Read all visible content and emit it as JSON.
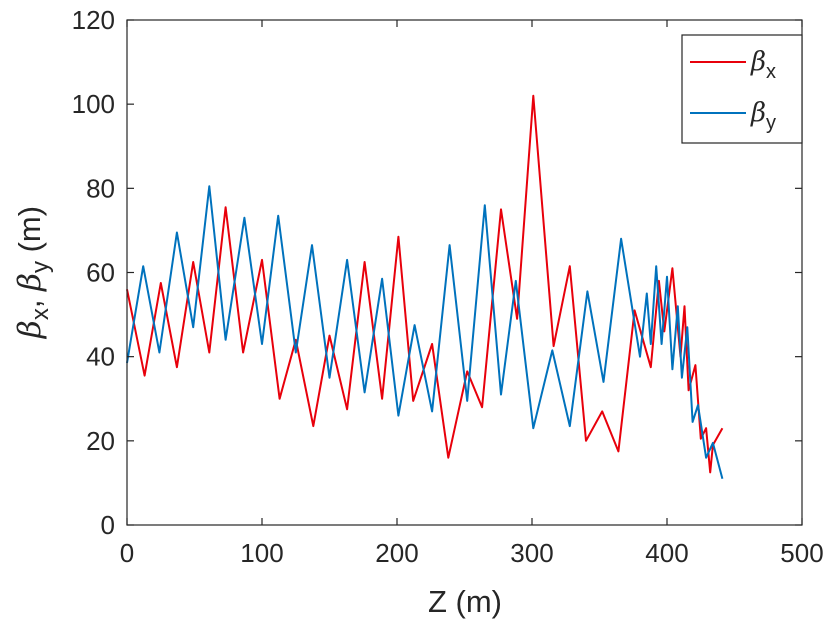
{
  "chart_data": {
    "type": "line",
    "xlabel": "Z (m)",
    "ylabel_parts": [
      "β",
      "x",
      ", ",
      "β",
      "y",
      " (m)"
    ],
    "xlim": [
      0,
      500
    ],
    "ylim": [
      0,
      120
    ],
    "xticks": [
      0,
      100,
      200,
      300,
      400,
      500
    ],
    "yticks": [
      0,
      20,
      40,
      60,
      80,
      100,
      120
    ],
    "xtick_labels": [
      "0",
      "100",
      "200",
      "300",
      "400",
      "500"
    ],
    "ytick_labels": [
      "0",
      "20",
      "40",
      "60",
      "80",
      "100",
      "120"
    ],
    "grid": false,
    "legend_position": "top-right",
    "series": [
      {
        "name": "βx",
        "legend_symbol": "β",
        "legend_sub": "x",
        "color": "#e8000b",
        "x": [
          0,
          13,
          25,
          37,
          49,
          61,
          73,
          86,
          100,
          113,
          125,
          138,
          150,
          163,
          176,
          189,
          201,
          212,
          226,
          238,
          252,
          263,
          277,
          289,
          301,
          316,
          328,
          340,
          352,
          364,
          376,
          388,
          394,
          398,
          404,
          410,
          413,
          416,
          421,
          425,
          429,
          432,
          434,
          441
        ],
        "y": [
          56,
          35.5,
          57.5,
          37.5,
          62.5,
          41,
          75.5,
          41,
          63,
          30,
          44,
          23.5,
          45,
          27.5,
          62.5,
          30,
          68.5,
          29.5,
          43,
          16,
          36.5,
          28,
          75,
          49,
          102,
          42.5,
          61.5,
          20,
          27,
          17.5,
          51,
          37.5,
          58,
          46,
          61,
          40,
          52,
          32,
          38,
          20.5,
          23,
          12.5,
          19,
          23
        ]
      },
      {
        "name": "βy",
        "legend_symbol": "β",
        "legend_sub": "y",
        "color": "#0072bd",
        "x": [
          0,
          12,
          24,
          37,
          49,
          61,
          73,
          87,
          100,
          112,
          125,
          137,
          150,
          163,
          176,
          189,
          201,
          213,
          226,
          239,
          252,
          265,
          277,
          288,
          301,
          315,
          328,
          341,
          353,
          366,
          380,
          385,
          388,
          392,
          396,
          400,
          404,
          408,
          411,
          415,
          419,
          423,
          429,
          434,
          441
        ],
        "y": [
          38.5,
          61.5,
          41,
          69.5,
          47,
          80.5,
          44,
          73,
          43,
          73.5,
          41,
          66.5,
          35,
          63,
          31.5,
          58.5,
          26,
          47.5,
          27,
          66.5,
          29.5,
          76,
          31,
          58,
          23,
          41.5,
          23.5,
          55.5,
          34,
          68,
          40,
          55,
          43,
          61.5,
          43,
          59,
          37,
          52,
          35,
          47,
          24.5,
          28.5,
          16,
          19.5,
          11
        ]
      }
    ]
  }
}
